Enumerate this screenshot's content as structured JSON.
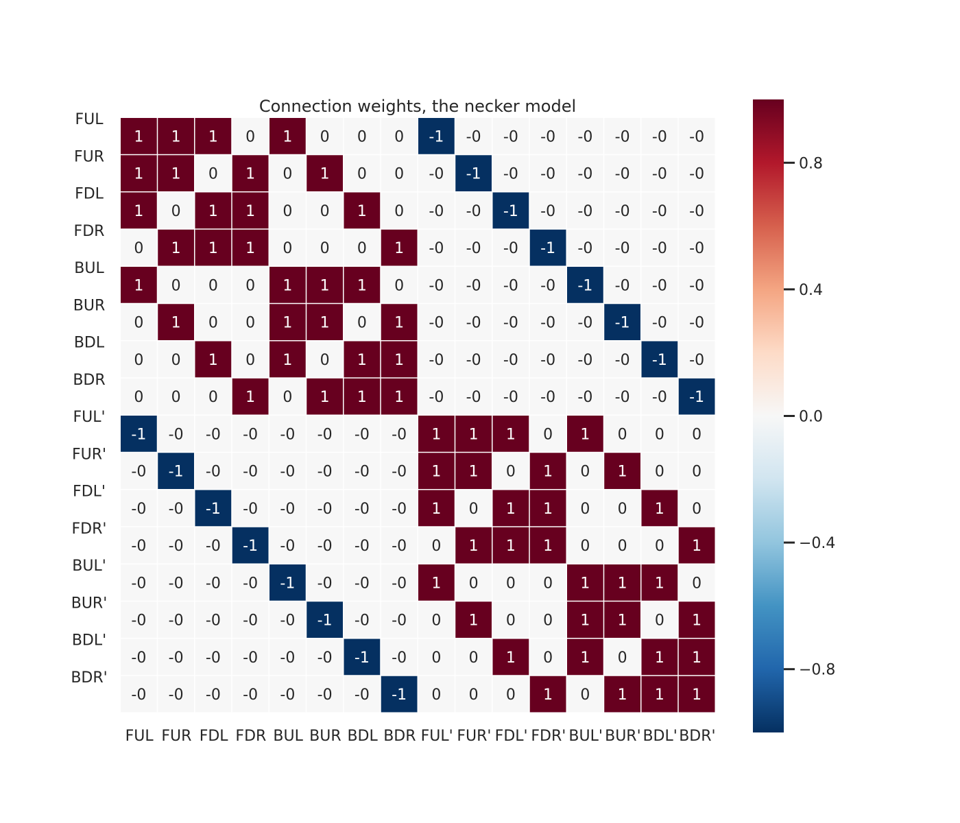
{
  "chart_data": {
    "type": "heatmap",
    "title": "Connection weights, the necker model",
    "xlabel": "",
    "ylabel": "",
    "row_labels": [
      "FUL",
      "FUR",
      "FDL",
      "FDR",
      "BUL",
      "BUR",
      "BDL",
      "BDR",
      "FUL'",
      "FUR'",
      "FDL'",
      "FDR'",
      "BUL'",
      "BUR'",
      "BDL'",
      "BDR'"
    ],
    "col_labels": [
      "FUL",
      "FUR",
      "FDL",
      "FDR",
      "BUL",
      "BUR",
      "BDL",
      "BDR",
      "FUL'",
      "FUR'",
      "FDL'",
      "FDR'",
      "BUL'",
      "BUR'",
      "BDL'",
      "BDR'"
    ],
    "values": [
      [
        1,
        1,
        1,
        0,
        1,
        0,
        0,
        0,
        -1,
        0,
        0,
        0,
        0,
        0,
        0,
        0
      ],
      [
        1,
        1,
        0,
        1,
        0,
        1,
        0,
        0,
        0,
        -1,
        0,
        0,
        0,
        0,
        0,
        0
      ],
      [
        1,
        0,
        1,
        1,
        0,
        0,
        1,
        0,
        0,
        0,
        -1,
        0,
        0,
        0,
        0,
        0
      ],
      [
        0,
        1,
        1,
        1,
        0,
        0,
        0,
        1,
        0,
        0,
        0,
        -1,
        0,
        0,
        0,
        0
      ],
      [
        1,
        0,
        0,
        0,
        1,
        1,
        1,
        0,
        0,
        0,
        0,
        0,
        -1,
        0,
        0,
        0
      ],
      [
        0,
        1,
        0,
        0,
        1,
        1,
        0,
        1,
        0,
        0,
        0,
        0,
        0,
        -1,
        0,
        0
      ],
      [
        0,
        0,
        1,
        0,
        1,
        0,
        1,
        1,
        0,
        0,
        0,
        0,
        0,
        0,
        -1,
        0
      ],
      [
        0,
        0,
        0,
        1,
        0,
        1,
        1,
        1,
        0,
        0,
        0,
        0,
        0,
        0,
        0,
        -1
      ],
      [
        -1,
        0,
        0,
        0,
        0,
        0,
        0,
        0,
        1,
        1,
        1,
        0,
        1,
        0,
        0,
        0
      ],
      [
        0,
        -1,
        0,
        0,
        0,
        0,
        0,
        0,
        1,
        1,
        0,
        1,
        0,
        1,
        0,
        0
      ],
      [
        0,
        0,
        -1,
        0,
        0,
        0,
        0,
        0,
        1,
        0,
        1,
        1,
        0,
        0,
        1,
        0
      ],
      [
        0,
        0,
        0,
        -1,
        0,
        0,
        0,
        0,
        0,
        1,
        1,
        1,
        0,
        0,
        0,
        1
      ],
      [
        0,
        0,
        0,
        0,
        -1,
        0,
        0,
        0,
        1,
        0,
        0,
        0,
        1,
        1,
        1,
        0
      ],
      [
        0,
        0,
        0,
        0,
        0,
        -1,
        0,
        0,
        0,
        1,
        0,
        0,
        1,
        1,
        0,
        1
      ],
      [
        0,
        0,
        0,
        0,
        0,
        0,
        -1,
        0,
        0,
        0,
        1,
        0,
        1,
        0,
        1,
        1
      ],
      [
        0,
        0,
        0,
        0,
        0,
        0,
        0,
        -1,
        0,
        0,
        0,
        1,
        0,
        1,
        1,
        1
      ]
    ],
    "colorbar": {
      "vmin": -1,
      "vmax": 1,
      "ticks": [
        0.8,
        0.4,
        0.0,
        -0.4,
        -0.8
      ],
      "tick_labels": [
        "0.8",
        "0.4",
        "0.0",
        "−0.4",
        "−0.8"
      ],
      "colormap": "RdBu_r"
    },
    "colors": {
      "positive": "#67001f",
      "negative": "#053061",
      "zero": "#f7f7f7",
      "text_dark": "#262626",
      "text_light": "#ffffff"
    }
  }
}
